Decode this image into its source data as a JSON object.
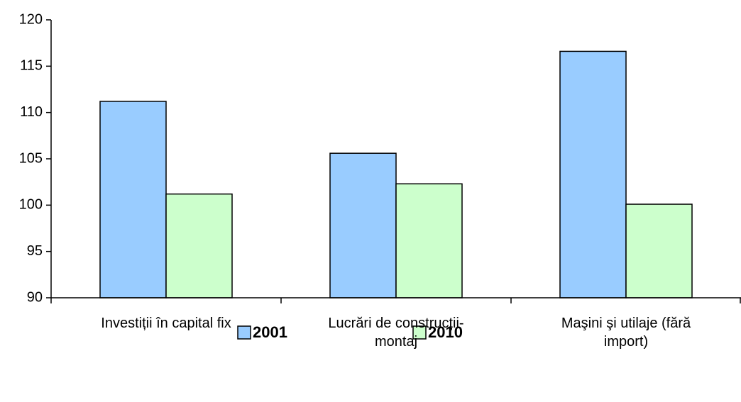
{
  "chart_data": {
    "type": "bar",
    "categories": [
      "Investiții în capital fix",
      "Lucrări de construcții-montaj",
      "Maşini şi utilaje (fără import)"
    ],
    "series": [
      {
        "name": "2001",
        "color": "#99ccff",
        "values": [
          111.2,
          105.6,
          116.6
        ]
      },
      {
        "name": "2010",
        "color": "#ccffcc",
        "values": [
          101.2,
          102.3,
          100.1
        ]
      }
    ],
    "ylim": [
      90,
      120
    ],
    "yticks": [
      90,
      95,
      100,
      105,
      110,
      115,
      120
    ],
    "legend": "bottom"
  }
}
